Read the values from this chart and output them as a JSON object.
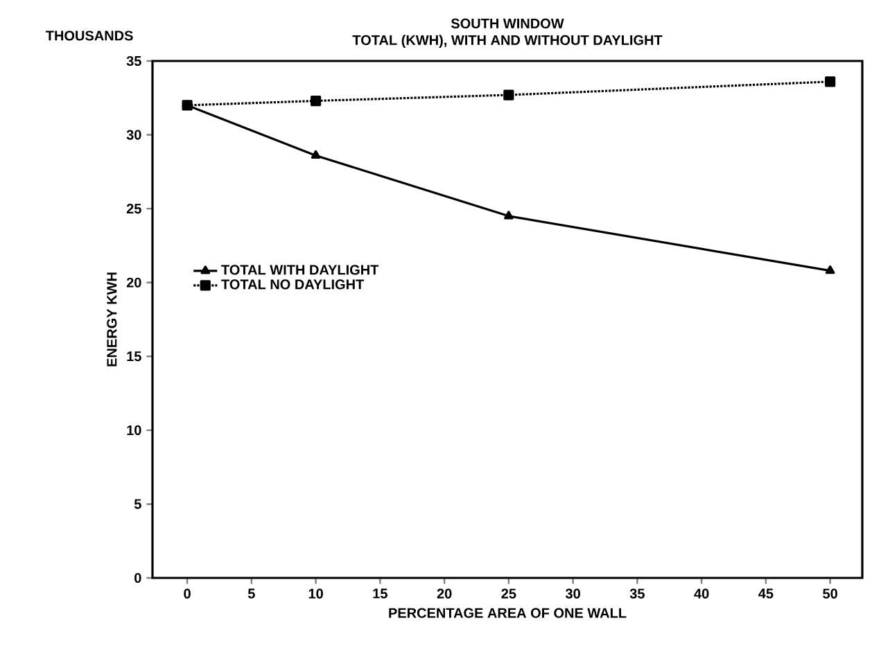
{
  "chart_data": {
    "type": "line",
    "title": "SOUTH WINDOW",
    "subtitle": "TOTAL (KWH), WITH AND WITHOUT DAYLIGHT",
    "xlabel": "PERCENTAGE AREA OF ONE WALL",
    "ylabel": "ENERGY KWH",
    "annotations": [
      "THOUSANDS"
    ],
    "x": [
      0,
      10,
      25,
      50
    ],
    "series": [
      {
        "name": "TOTAL WITH DAYLIGHT",
        "color": "#000000",
        "values": [
          32.0,
          28.6,
          24.5,
          20.8
        ],
        "marker": "triangle",
        "line_style": "solid"
      },
      {
        "name": "TOTAL NO DAYLIGHT",
        "color": "#000000",
        "values": [
          32.0,
          32.3,
          32.7,
          33.6
        ],
        "marker": "square",
        "line_style": "dotted"
      }
    ],
    "xlim": [
      -2.7,
      52.5
    ],
    "ylim": [
      0,
      35
    ],
    "xticks": [
      0,
      5,
      10,
      15,
      20,
      25,
      30,
      35,
      40,
      45,
      50
    ],
    "yticks": [
      0,
      5,
      10,
      15,
      20,
      25,
      30,
      35
    ],
    "grid": false,
    "legend": "left"
  }
}
